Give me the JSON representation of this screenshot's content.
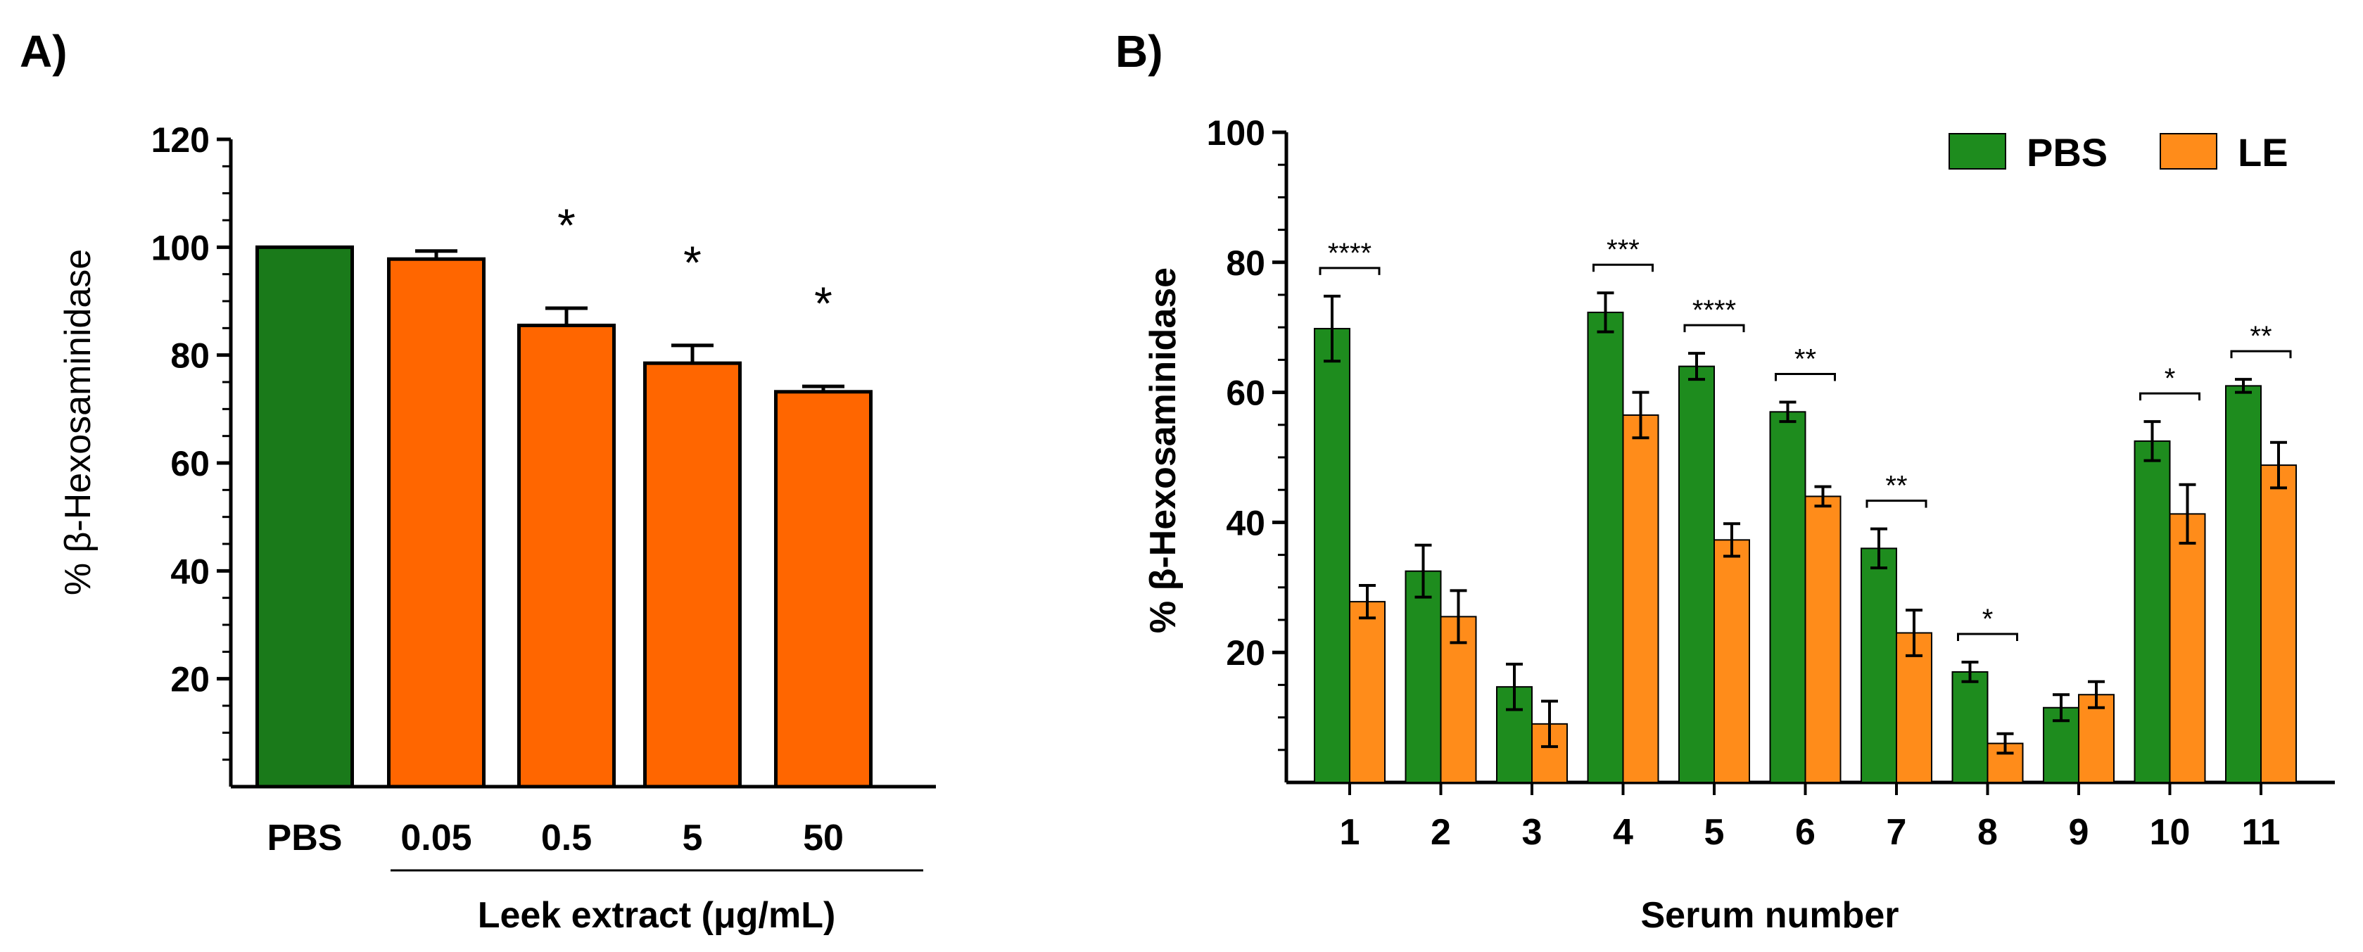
{
  "chart_data": [
    {
      "panel": "A)",
      "type": "bar",
      "title": "",
      "ylabel_prefix": "% ",
      "ylabel_beta": "β",
      "ylabel_suffix": "-Hexosaminidase",
      "xlabel": "Leek extract (μg/mL)",
      "ylim": [
        0,
        120
      ],
      "yticks": [
        20,
        40,
        60,
        80,
        100,
        120
      ],
      "categories": [
        "PBS",
        "0.05",
        "0.5",
        "5",
        "50"
      ],
      "values": [
        100,
        97.8,
        85.5,
        78.5,
        73.2
      ],
      "errors": [
        0,
        1.5,
        3.2,
        3.3,
        1.0
      ],
      "colors": [
        "#1a7a1a",
        "#ff6600",
        "#ff6600",
        "#ff6600",
        "#ff6600"
      ],
      "annotations": [
        "",
        "",
        "*",
        "*",
        "*"
      ]
    },
    {
      "panel": "B)",
      "type": "bar",
      "title": "",
      "ylabel": "% β-Hexosaminidase",
      "xlabel": "Serum number",
      "ylim": [
        0,
        100
      ],
      "yticks": [
        20,
        40,
        60,
        80,
        100
      ],
      "categories": [
        "1",
        "2",
        "3",
        "4",
        "5",
        "6",
        "7",
        "8",
        "9",
        "10",
        "11"
      ],
      "legend_position": "top-right",
      "series": [
        {
          "name": "PBS",
          "color": "#1e8c1e",
          "values": [
            69.8,
            32.5,
            14.7,
            72.3,
            64.0,
            57.0,
            36.0,
            17.0,
            11.5,
            52.5,
            61.0
          ],
          "errors": [
            5.0,
            4.0,
            3.5,
            3.0,
            2.0,
            1.5,
            3.0,
            1.5,
            2.0,
            3.0,
            1.0
          ]
        },
        {
          "name": "LE",
          "color": "#ff8c1a",
          "values": [
            27.8,
            25.5,
            9.0,
            56.5,
            37.3,
            44.0,
            23.0,
            6.0,
            13.5,
            41.3,
            48.8
          ],
          "errors": [
            2.5,
            4.0,
            3.5,
            3.5,
            2.5,
            1.5,
            3.5,
            1.5,
            2.0,
            4.5,
            3.5
          ]
        }
      ],
      "significance": [
        "****",
        "",
        "",
        "***",
        "****",
        "**",
        "**",
        "*",
        "",
        "*",
        "**"
      ]
    }
  ]
}
